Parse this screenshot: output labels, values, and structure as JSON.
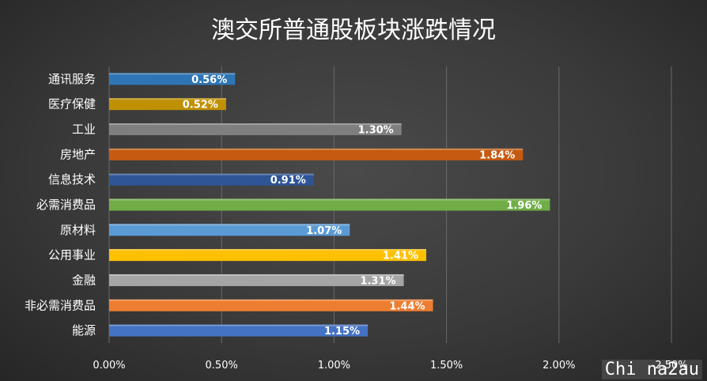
{
  "chart_data": {
    "type": "bar",
    "orientation": "horizontal",
    "title": "澳交所普通股板块涨跌情况",
    "categories": [
      "通讯服务",
      "医疗保健",
      "工业",
      "房地产",
      "信息技术",
      "必需消费品",
      "原材料",
      "公用事业",
      "金融",
      "非必需消费品",
      "能源"
    ],
    "values": [
      0.56,
      0.52,
      1.3,
      1.84,
      0.91,
      1.96,
      1.07,
      1.41,
      1.31,
      1.44,
      1.15
    ],
    "value_labels": [
      "0.56%",
      "0.52%",
      "1.30%",
      "1.84%",
      "0.91%",
      "1.96%",
      "1.07%",
      "1.41%",
      "1.31%",
      "1.44%",
      "1.15%"
    ],
    "colors": [
      "#2e75b6",
      "#bf9000",
      "#7f7f7f",
      "#c55a11",
      "#2f5597",
      "#70ad47",
      "#5b9bd5",
      "#ffc000",
      "#a5a5a5",
      "#ed7d31",
      "#4472c4"
    ],
    "xlim": [
      0,
      2.5
    ],
    "x_ticks": [
      0,
      0.5,
      1.0,
      1.5,
      2.0,
      2.5
    ],
    "x_tick_labels": [
      "0.00%",
      "0.50%",
      "1.00%",
      "1.50%",
      "2.00%",
      "2.50%"
    ],
    "grid": true,
    "legend": "none"
  },
  "watermark": "Chi na2au"
}
